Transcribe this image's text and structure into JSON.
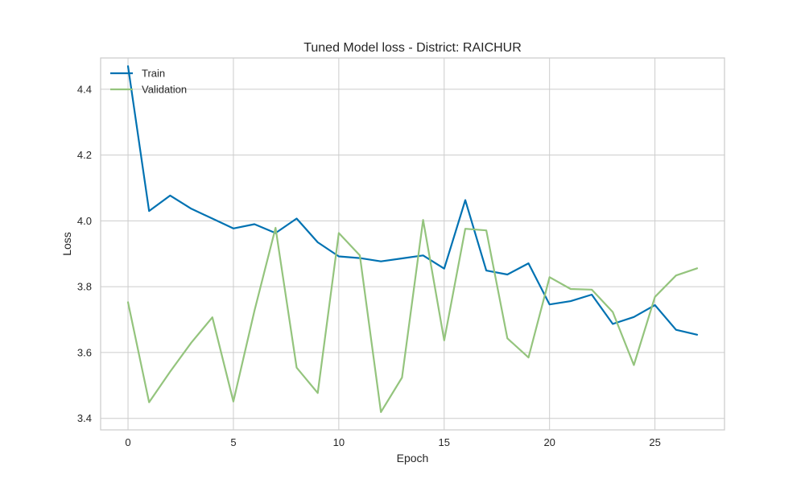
{
  "chart_data": {
    "type": "line",
    "title": "Tuned Model loss - District: RAICHUR",
    "xlabel": "Epoch",
    "ylabel": "Loss",
    "xlim": [
      -1.3,
      28.3
    ],
    "ylim": [
      3.365,
      4.495
    ],
    "xticks": [
      0,
      5,
      10,
      15,
      20,
      25
    ],
    "yticks": [
      3.4,
      3.6,
      3.8,
      4.0,
      4.2,
      4.4
    ],
    "xtick_labels": [
      "0",
      "5",
      "10",
      "15",
      "20",
      "25"
    ],
    "ytick_labels": [
      "3.4",
      "3.6",
      "3.8",
      "4.0",
      "4.2",
      "4.4"
    ],
    "grid": true,
    "legend_position": "top-left",
    "x": [
      0,
      1,
      2,
      3,
      4,
      5,
      6,
      7,
      8,
      9,
      10,
      11,
      12,
      13,
      14,
      15,
      16,
      17,
      18,
      19,
      20,
      21,
      22,
      23,
      24,
      25,
      26,
      27
    ],
    "series": [
      {
        "name": "Train",
        "color": "#0072b2",
        "values": [
          4.47,
          4.03,
          4.077,
          4.037,
          4.007,
          3.977,
          3.99,
          3.963,
          4.007,
          3.935,
          3.892,
          3.887,
          3.877,
          3.886,
          3.895,
          3.855,
          4.063,
          3.849,
          3.837,
          3.871,
          3.746,
          3.756,
          3.776,
          3.687,
          3.708,
          3.744,
          3.669,
          3.654
        ]
      },
      {
        "name": "Validation",
        "color": "#94c47d",
        "values": [
          3.753,
          3.449,
          3.542,
          3.63,
          3.707,
          3.451,
          3.727,
          3.979,
          3.554,
          3.477,
          3.963,
          3.895,
          3.419,
          3.524,
          4.003,
          3.637,
          3.976,
          3.971,
          3.643,
          3.585,
          3.829,
          3.793,
          3.791,
          3.723,
          3.562,
          3.769,
          3.834,
          3.856
        ]
      }
    ]
  }
}
